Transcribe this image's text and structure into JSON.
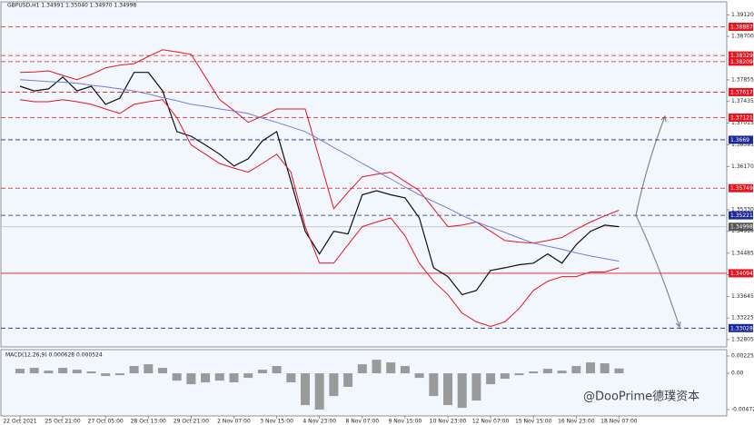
{
  "chart_data": [
    {
      "type": "line",
      "title": "GBPUSD,H1  1.34991 1.35040 1.34970 1.34998",
      "categories": [
        "22 Oct 2021",
        null,
        null,
        "25 Oct 21:00",
        null,
        null,
        "27 Oct 05:00",
        null,
        null,
        "28 Oct 13:00",
        null,
        null,
        "29 Oct 21:00",
        null,
        null,
        "2 Nov 07:00",
        null,
        null,
        "3 Nov 15:00",
        null,
        null,
        "4 Nov 23:00",
        null,
        null,
        "8 Nov 07:00",
        null,
        null,
        "9 Nov 15:00",
        null,
        null,
        "10 Nov 23:00",
        null,
        null,
        "12 Nov 07:00",
        null,
        null,
        "15 Nov 15:00",
        null,
        null,
        "16 Nov 23:00",
        null,
        null,
        "18 Nov 07:00"
      ],
      "series": [
        {
          "color": "#111111",
          "values": [
            1.3773,
            1.3764,
            1.3768,
            1.3791,
            1.3764,
            1.3773,
            1.3738,
            1.375,
            1.38,
            1.38,
            1.3764,
            1.3685,
            1.3676,
            1.3659,
            1.3641,
            1.3618,
            1.3632,
            1.3667,
            1.3685,
            1.3588,
            1.3491,
            1.3447,
            1.3491,
            1.3486,
            1.3562,
            1.357,
            1.3562,
            1.3556,
            1.3517,
            1.342,
            1.3403,
            1.3368,
            1.3376,
            1.3415,
            1.342,
            1.3426,
            1.3429,
            1.3447,
            1.3429,
            1.3465,
            1.3491,
            1.3503,
            1.35
          ]
        },
        {
          "color": "#e8141e",
          "values": [
            1.38,
            1.3801,
            1.3803,
            1.3794,
            1.3786,
            1.3796,
            1.3809,
            1.3814,
            1.3817,
            1.3831,
            1.3844,
            1.384,
            1.3835,
            1.3791,
            1.3747,
            1.3726,
            1.3703,
            1.3715,
            1.3729,
            1.3729,
            1.3729,
            1.3632,
            1.3535,
            1.3567,
            1.3597,
            1.3602,
            1.3606,
            1.3588,
            1.357,
            1.3535,
            1.35,
            1.3503,
            1.3509,
            1.3491,
            1.3473,
            1.347,
            1.3468,
            1.3473,
            1.3479,
            1.3495,
            1.3509,
            1.3521,
            1.3532
          ]
        },
        {
          "color": "#e8141e",
          "values": [
            1.3747,
            1.3743,
            1.3743,
            1.3747,
            1.3743,
            1.3738,
            1.3729,
            1.372,
            1.3738,
            1.3743,
            1.3747,
            1.3712,
            1.3659,
            1.3641,
            1.3623,
            1.3614,
            1.3606,
            1.3623,
            1.3641,
            1.3606,
            1.35,
            1.3429,
            1.3429,
            1.3465,
            1.35,
            1.3509,
            1.3517,
            1.3482,
            1.3429,
            1.3394,
            1.3368,
            1.3332,
            1.3315,
            1.3306,
            1.3315,
            1.3341,
            1.3376,
            1.3394,
            1.3403,
            1.3403,
            1.3412,
            1.3412,
            1.342
          ]
        },
        {
          "color": "#7a7ad8",
          "values": [
            1.3786,
            1.3784,
            1.3782,
            1.3781,
            1.3779,
            1.3775,
            1.3772,
            1.3768,
            1.3764,
            1.3758,
            1.3751,
            1.3745,
            1.3738,
            1.3734,
            1.3729,
            1.3725,
            1.372,
            1.3711,
            1.3703,
            1.3694,
            1.3685,
            1.367,
            1.3654,
            1.3639,
            1.3623,
            1.3608,
            1.3593,
            1.3577,
            1.3562,
            1.3549,
            1.3536,
            1.3522,
            1.3509,
            1.3499,
            1.3489,
            1.3478,
            1.3468,
            1.3462,
            1.3456,
            1.3449,
            1.3443,
            1.3438,
            1.3433
          ]
        }
      ],
      "ylim": [
        1.3268,
        1.3932
      ],
      "yticks": [
        {
          "value": 1.3912,
          "label": "1.39120"
        },
        {
          "value": 1.387,
          "label": "1.38700"
        },
        1.37855,
        1.37435,
        1.37015,
        1.36595,
        {
          "value": 1.3617,
          "label": "1.36170"
        },
        {
          "value": 1.3533,
          "label": "1.35330"
        },
        {
          "value": 1.3491,
          "label": "1.34910"
        },
        1.34485,
        1.34065,
        1.33645,
        1.33225,
        1.32805
      ],
      "levels": [
        {
          "value": 1.38887,
          "color": "#e8141e"
        },
        {
          "value": 1.38329,
          "color": "#e8141e"
        },
        {
          "value": 1.38209,
          "color": "#e8141e"
        },
        {
          "value": 1.37617,
          "color": "#e8141e"
        },
        {
          "value": 1.37121,
          "color": "#e8141e"
        },
        {
          "value": 1.3669,
          "color": "#1a2a9a"
        },
        {
          "value": 1.35749,
          "color": "#e8141e"
        },
        {
          "value": 1.35221,
          "color": "#1a2a9a"
        },
        {
          "value": 1.34998,
          "color": "#555555"
        },
        {
          "value": 1.34094,
          "color": "#e8141e"
        },
        {
          "value": 1.33028,
          "color": "#1a2a9a"
        }
      ]
    },
    {
      "type": "bar",
      "title": "MACD(12,26,9) 0.000628 0.000524",
      "color": "#9a9a9a",
      "values": [
        0.00059,
        0.00071,
        0.00035,
        0.00071,
        0.00047,
        0.00024,
        -0.00035,
        -0.00024,
        0.00095,
        0.00118,
        0.00071,
        -0.00095,
        -0.00142,
        -0.00118,
        -0.00095,
        -0.00118,
        -0.00059,
        0.00047,
        0.00095,
        -0.00118,
        -0.00414,
        -0.00473,
        -0.00296,
        -0.00177,
        0.00118,
        0.00177,
        0.00142,
        0.00095,
        -0.00059,
        -0.00296,
        -0.00414,
        -0.0045,
        -0.00355,
        -0.00142,
        -0.00071,
        -0.00024,
        0.00024,
        0.00059,
        0.00035,
        0.00095,
        0.00142,
        0.0013,
        0.00063
      ],
      "ylim": [
        -0.00555,
        0.00273
      ],
      "yticks": [
        0.002258,
        {
          "value": 0,
          "label": "0.00"
        },
        -0.004723
      ]
    }
  ],
  "watermark": "@DooPrime德璞资本"
}
